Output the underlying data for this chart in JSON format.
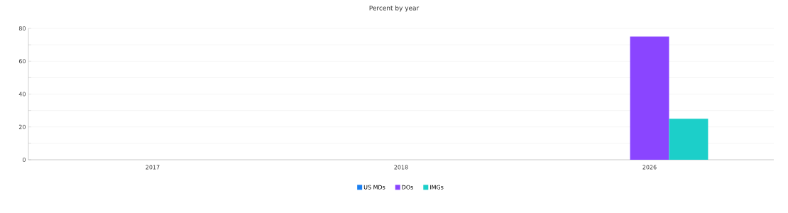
{
  "chart_data": {
    "type": "bar",
    "title": "Percent by year",
    "categories": [
      "2017",
      "2018",
      "2026"
    ],
    "series": [
      {
        "name": "US MDs",
        "color": "#1a7ff0",
        "values": [
          0,
          0,
          0
        ]
      },
      {
        "name": "DOs",
        "color": "#8a45ff",
        "values": [
          0,
          0,
          75
        ]
      },
      {
        "name": "IMGs",
        "color": "#1ccfc9",
        "values": [
          0,
          0,
          25
        ]
      }
    ],
    "ylim": [
      0,
      80
    ],
    "yticks": [
      0,
      {
        "value": 10,
        "label": null
      },
      20,
      {
        "value": 30,
        "label": null
      },
      40,
      {
        "value": 50,
        "label": null
      },
      60,
      {
        "value": 70,
        "label": null
      },
      80
    ],
    "grid": "y",
    "legend": "bottom"
  }
}
